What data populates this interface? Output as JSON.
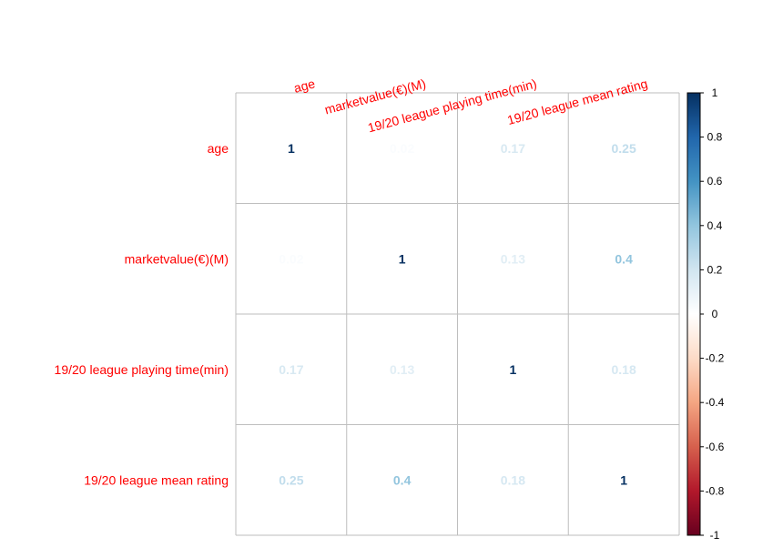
{
  "chart_data": {
    "type": "heatmap",
    "variables": [
      "age",
      "marketvalue(€)(M)",
      "19/20 league playing time(min)",
      "19/20 league mean rating"
    ],
    "matrix": [
      [
        1,
        0.02,
        0.17,
        0.25
      ],
      [
        0.02,
        1,
        0.13,
        0.4
      ],
      [
        0.17,
        0.13,
        1,
        0.18
      ],
      [
        0.25,
        0.4,
        0.18,
        1
      ]
    ],
    "cell_labels": [
      [
        "1",
        "0.02",
        "0.17",
        "0.25"
      ],
      [
        "0.02",
        "1",
        "0.13",
        "0.4"
      ],
      [
        "0.17",
        "0.13",
        "1",
        "0.18"
      ],
      [
        "0.25",
        "0.4",
        "0.18",
        "1"
      ]
    ],
    "colorbar": {
      "range": [
        -1,
        1
      ],
      "ticks": [
        "1",
        "0.8",
        "0.6",
        "0.4",
        "0.2",
        "0",
        "-0.2",
        "-0.4",
        "-0.6",
        "-0.8",
        "-1"
      ],
      "low_color": "#67001F",
      "mid_color": "#FFFFFF",
      "high_color": "#053061"
    },
    "label_color": "#FF0000",
    "grid_color": "#BEBEBE"
  }
}
